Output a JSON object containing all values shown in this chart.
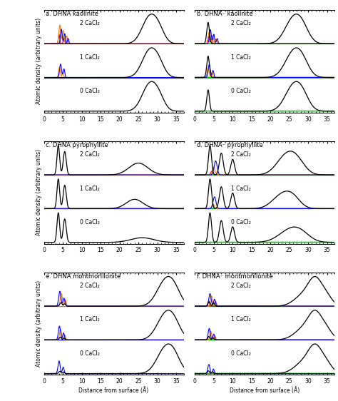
{
  "panels": [
    {
      "label": "a. DHNA kaolinite",
      "mineral": "kaolinite",
      "type": "DHNA"
    },
    {
      "label": "b. DHNA⁻ kaolinite",
      "mineral": "kaolinite",
      "type": "DHNA-"
    },
    {
      "label": "c. DHNA pyrophyllite",
      "mineral": "pyrophyllite",
      "type": "DHNA"
    },
    {
      "label": "d. DHNA⁻ pyrophyllite",
      "mineral": "pyrophyllite",
      "type": "DHNA-"
    },
    {
      "label": "e. DHNA montmorillonite",
      "mineral": "montmorillonite",
      "type": "DHNA"
    },
    {
      "label": "f. DHNA⁻ montmorillonite",
      "mineral": "montmorillonite",
      "type": "DHNA-"
    }
  ],
  "conc_labels": [
    "2 CaCl₂",
    "1 CaCl₂",
    "0 CaCl₂"
  ],
  "xlabel": "Distance from surface (Å)",
  "ylabel": "Atomic density (arbitrary units)",
  "xmax": 37,
  "colors": {
    "black": "#000000",
    "blue": "#0000ff",
    "orange": "#ff7700",
    "red": "#dd0000",
    "green": "#00cc00"
  }
}
